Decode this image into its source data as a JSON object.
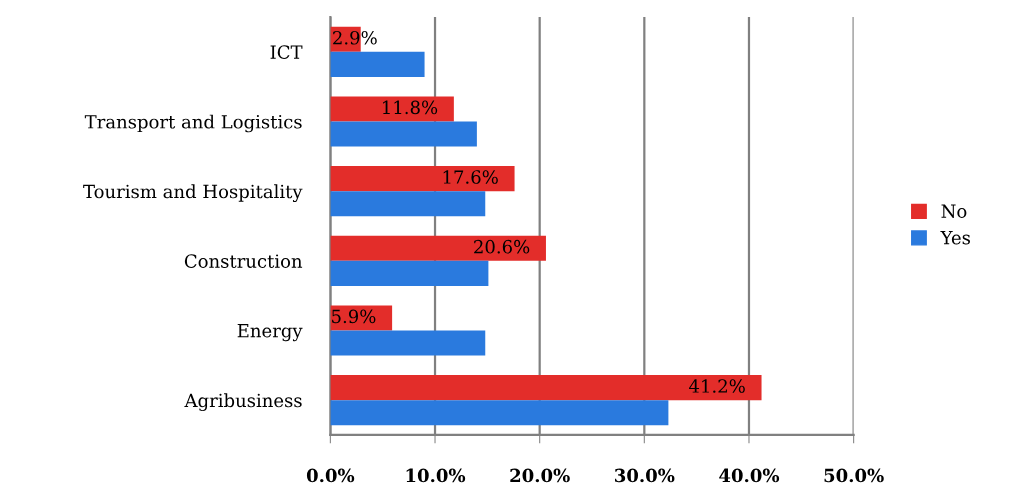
{
  "chart_data": {
    "type": "bar",
    "orientation": "horizontal",
    "categories": [
      "ICT",
      "Transport and Logistics",
      "Tourism and Hospitality",
      "Construction",
      "Energy",
      "Agribusiness"
    ],
    "series": [
      {
        "name": "No",
        "color": "#e32d2a",
        "values": [
          2.9,
          11.8,
          17.6,
          20.6,
          5.9,
          41.2
        ],
        "value_labels": [
          "2.9%",
          "11.8%",
          "17.6%",
          "20.6%",
          "5.9%",
          "41.2%"
        ]
      },
      {
        "name": "Yes",
        "color": "#2a7ade",
        "values": [
          9.0,
          14.0,
          14.8,
          15.1,
          14.8,
          32.3
        ]
      }
    ],
    "xlim": [
      0,
      50
    ],
    "xticks": [
      {
        "value": 0,
        "label": "0.0%"
      },
      {
        "value": 10,
        "label": "10.0%"
      },
      {
        "value": 20,
        "label": "20.0%"
      },
      {
        "value": 30,
        "label": "30.0%"
      },
      {
        "value": 40,
        "label": "40.0%"
      },
      {
        "value": 50,
        "label": "50.0%"
      }
    ],
    "grid": "x",
    "legend": "right"
  }
}
